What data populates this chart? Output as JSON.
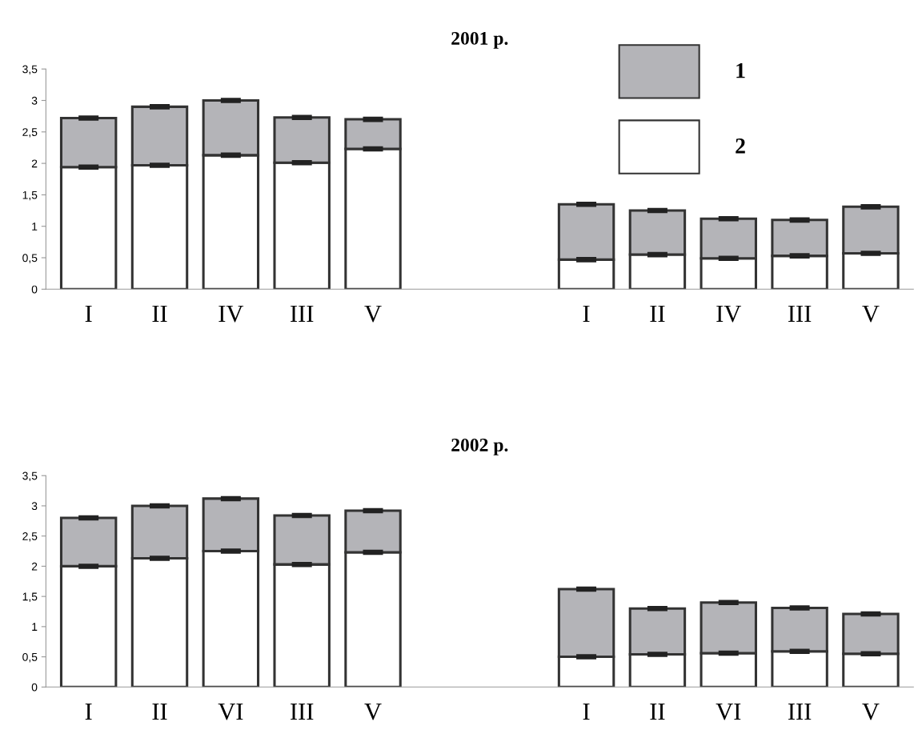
{
  "chart_data": [
    {
      "type": "bar",
      "title": "2001 р.",
      "stacked": true,
      "categories": [
        "I",
        "II",
        "IV",
        "III",
        "V",
        null,
        null,
        "I",
        "II",
        "IV",
        "III",
        "V"
      ],
      "series": [
        {
          "name": "2",
          "color": "#ffffff",
          "values": [
            1.94,
            1.97,
            2.13,
            2.01,
            2.23,
            null,
            null,
            0.47,
            0.55,
            0.49,
            0.53,
            0.57
          ],
          "errors": [
            0.02,
            0.02,
            0.02,
            0.02,
            0.02,
            null,
            null,
            0.02,
            0.02,
            0.02,
            0.02,
            0.02
          ]
        },
        {
          "name": "1",
          "color": "#b4b4b8",
          "values": [
            0.78,
            0.93,
            0.87,
            0.72,
            0.47,
            null,
            null,
            0.88,
            0.7,
            0.63,
            0.57,
            0.74
          ],
          "errors": [
            0.02,
            0.02,
            0.02,
            0.02,
            0.02,
            null,
            null,
            0.02,
            0.02,
            0.02,
            0.02,
            0.02
          ]
        }
      ],
      "ylim": [
        0,
        3.5
      ],
      "yticks": [
        0,
        {
          "value": 0.5,
          "label": "0,5"
        },
        1,
        {
          "value": 1.5,
          "label": "1,5"
        },
        2,
        {
          "value": 2.5,
          "label": "2,5"
        },
        3,
        {
          "value": 3.5,
          "label": "3,5"
        }
      ],
      "grid": false,
      "legend": "top right"
    },
    {
      "type": "bar",
      "title": "2002 р.",
      "stacked": true,
      "categories": [
        "I",
        "II",
        "VI",
        "III",
        "V",
        null,
        null,
        "I",
        "II",
        "VI",
        "III",
        "V"
      ],
      "series": [
        {
          "color": "#ffffff",
          "values": [
            2.0,
            2.13,
            2.25,
            2.03,
            2.23,
            null,
            null,
            0.5,
            0.54,
            0.56,
            0.59,
            0.55
          ],
          "errors": [
            0.02,
            0.02,
            0.02,
            0.02,
            0.02,
            null,
            null,
            0.02,
            0.02,
            0.02,
            0.02,
            0.02
          ]
        },
        {
          "color": "#b4b4b8",
          "values": [
            0.8,
            0.87,
            0.87,
            0.81,
            0.69,
            null,
            null,
            1.12,
            0.76,
            0.84,
            0.72,
            0.66
          ],
          "errors": [
            0.02,
            0.02,
            0.02,
            0.02,
            0.02,
            null,
            null,
            0.02,
            0.02,
            0.02,
            0.02,
            0.02
          ]
        }
      ],
      "ylim": [
        0,
        3.5
      ],
      "yticks": [
        0,
        {
          "value": 0.5,
          "label": "0,5"
        },
        1,
        {
          "value": 1.5,
          "label": "1,5"
        },
        2,
        {
          "value": 2.5,
          "label": "2,5"
        },
        3,
        {
          "value": 3.5,
          "label": "3,5"
        }
      ],
      "grid": false,
      "legend": false
    }
  ]
}
